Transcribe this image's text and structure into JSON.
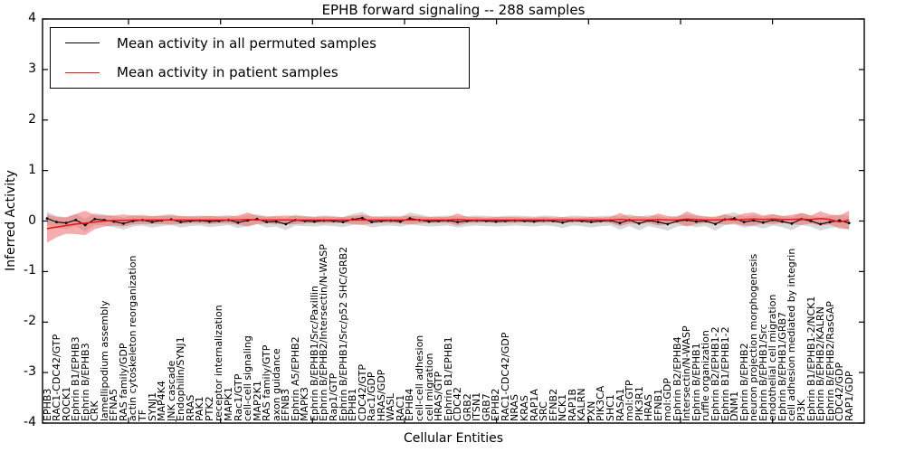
{
  "chart_data": {
    "type": "line",
    "title": "EPHB forward signaling -- 288 samples",
    "xlabel": "Cellular Entities",
    "ylabel": "Inferred Activity",
    "ylim": [
      -4,
      4
    ],
    "yticks": [
      4,
      3,
      2,
      1,
      0,
      -1,
      -2,
      -3,
      -4
    ],
    "grid": false,
    "legend_position": "upper left",
    "colors": {
      "permuted_line": "#000000",
      "permuted_band": "#b8b8b8",
      "patient_line": "#f21111",
      "patient_band": "#ee6a6a"
    },
    "categories": [
      "EPHB3",
      "RAC1-CDC42/GTP",
      "ROCK1",
      "Ephrin B1/EPHB3",
      "Ephrin B/EPHB3",
      "CRK",
      "lamellipodium assembly",
      "EFNA5",
      "RAS family/GDP",
      "actin cytoskeleton reorganization",
      "TF",
      "SYNJ1",
      "MAP4K4",
      "JNK cascade",
      "Endophilin/SYNJ1",
      "RRAS",
      "PAK1",
      "PTK2",
      "receptor internalization",
      "MAPK1",
      "Rac1/GTP",
      "cell-cell signaling",
      "MAP2K1",
      "RAS family/GTP",
      "axon guidance",
      "EFNB3",
      "Ephrin A5/EPHB2",
      "MAPK3",
      "Ephrin B/EPHB1/Src/Paxillin",
      "Ephrin B/EPHB2/Intersectin/N-WASP",
      "Rap1/GTP",
      "Ephrin B/EPHB1/Src/p52 SHC/GRB2",
      "EPHB1",
      "CDC42/GTP",
      "Rac1/GDP",
      "HRAS/GDP",
      "WASL",
      "RAC1",
      "EPHB4",
      "cell-cell adhesion",
      "cell migration",
      "HRAS/GTP",
      "Ephrin B1/EPHB1",
      "CDC42",
      "GRB2",
      "ITSN1",
      "GRB7",
      "EPHB2",
      "RAC1-CDC42/GDP",
      "NRAS",
      "KRAS",
      "RAP1A",
      "SRC",
      "EFNB2",
      "NCK1",
      "RAP1B",
      "KALRN",
      "PXN",
      "PIK3CA",
      "SHC1",
      "RASA1",
      "mol:GTP",
      "PIK3R1",
      "HRAS",
      "EFNB1",
      "mol:GDP",
      "Ephrin B2/EPHB4",
      "Intersectin/N-WASP",
      "Ephrin B/EPHB1",
      "ruffle organization",
      "Ephrin B2/EPHB1-2",
      "Ephrin B1/EPHB1-2",
      "DNM1",
      "Ephrin B/EPHB2",
      "neuron projection morphogenesis",
      "Ephrin B/EPHB1/Src",
      "endothelial cell migration",
      "Ephrin B/EPHB1/GRB7",
      "cell adhesion mediated by integrin",
      "PI3K",
      "Ephrin B1/EPHB1-2/NCK1",
      "Ephrin B/EPHB2/KALRN",
      "Ephrin B/EPHB2/RasGAP",
      "CDC42/GDP",
      "RAP1/GDP"
    ],
    "series": [
      {
        "name": "Mean activity in all permuted samples",
        "values": [
          0.05,
          -0.02,
          -0.04,
          0.02,
          -0.08,
          0.04,
          0.02,
          -0.01,
          -0.05,
          0.0,
          0.02,
          -0.02,
          0.01,
          0.03,
          -0.02,
          0.0,
          0.01,
          -0.01,
          0.0,
          0.02,
          -0.03,
          0.01,
          0.04,
          -0.02,
          -0.01,
          -0.06,
          0.02,
          0.0,
          -0.01,
          0.01,
          0.0,
          -0.02,
          0.03,
          0.06,
          -0.02,
          0.0,
          0.01,
          -0.01,
          0.05,
          0.02,
          -0.01,
          0.0,
          0.01,
          -0.02,
          0.0,
          0.01,
          0.0,
          -0.01,
          0.0,
          0.01,
          0.0,
          -0.01,
          0.01,
          0.0,
          -0.03,
          0.01,
          0.0,
          -0.02,
          0.0,
          0.01,
          -0.04,
          0.02,
          -0.05,
          0.01,
          -0.02,
          -0.06,
          0.0,
          0.02,
          -0.01,
          0.0,
          -0.06,
          0.03,
          0.05,
          -0.02,
          0.01,
          -0.03,
          0.02,
          -0.01,
          -0.05,
          0.04,
          0.0,
          -0.06,
          -0.02,
          0.01,
          -0.04
        ],
        "band_halfwidth": [
          0.13,
          0.12,
          0.12,
          0.12,
          0.13,
          0.12,
          0.11,
          0.11,
          0.12,
          0.11,
          0.11,
          0.11,
          0.11,
          0.11,
          0.11,
          0.1,
          0.1,
          0.11,
          0.1,
          0.1,
          0.11,
          0.11,
          0.1,
          0.11,
          0.1,
          0.12,
          0.11,
          0.1,
          0.1,
          0.1,
          0.1,
          0.1,
          0.11,
          0.12,
          0.11,
          0.1,
          0.1,
          0.1,
          0.12,
          0.11,
          0.1,
          0.1,
          0.1,
          0.11,
          0.1,
          0.1,
          0.1,
          0.1,
          0.1,
          0.1,
          0.1,
          0.1,
          0.1,
          0.1,
          0.11,
          0.1,
          0.1,
          0.11,
          0.1,
          0.1,
          0.13,
          0.12,
          0.13,
          0.11,
          0.12,
          0.13,
          0.11,
          0.11,
          0.11,
          0.1,
          0.13,
          0.11,
          0.12,
          0.11,
          0.11,
          0.12,
          0.11,
          0.11,
          0.13,
          0.12,
          0.11,
          0.13,
          0.12,
          0.12,
          0.14
        ]
      },
      {
        "name": "Mean activity in patient samples",
        "values": [
          -0.15,
          -0.12,
          -0.09,
          -0.06,
          -0.04,
          -0.02,
          0.0,
          0.01,
          0.01,
          0.02,
          0.02,
          0.02,
          0.02,
          0.02,
          0.02,
          0.02,
          0.02,
          0.02,
          0.02,
          0.02,
          0.02,
          0.03,
          0.02,
          0.02,
          0.02,
          0.02,
          0.02,
          0.02,
          0.02,
          0.02,
          0.02,
          0.02,
          0.02,
          0.02,
          0.02,
          0.02,
          0.02,
          0.02,
          0.02,
          0.02,
          0.02,
          0.02,
          0.02,
          0.03,
          0.02,
          0.02,
          0.02,
          0.02,
          0.02,
          0.02,
          0.02,
          0.02,
          0.02,
          0.02,
          0.02,
          0.02,
          0.02,
          0.02,
          0.02,
          0.02,
          0.03,
          0.02,
          0.02,
          0.02,
          0.03,
          0.02,
          0.02,
          0.04,
          0.03,
          0.02,
          0.02,
          0.03,
          0.02,
          0.03,
          0.04,
          0.03,
          0.04,
          0.03,
          0.03,
          0.04,
          0.03,
          0.05,
          0.03,
          -0.02,
          0.02
        ],
        "band_halfwidth": [
          0.28,
          0.2,
          0.16,
          0.2,
          0.24,
          0.14,
          0.11,
          0.1,
          0.12,
          0.09,
          0.08,
          0.08,
          0.08,
          0.09,
          0.08,
          0.07,
          0.07,
          0.08,
          0.07,
          0.07,
          0.09,
          0.14,
          0.08,
          0.07,
          0.08,
          0.09,
          0.08,
          0.07,
          0.06,
          0.07,
          0.06,
          0.06,
          0.08,
          0.1,
          0.07,
          0.06,
          0.06,
          0.07,
          0.09,
          0.07,
          0.06,
          0.06,
          0.06,
          0.12,
          0.06,
          0.06,
          0.05,
          0.06,
          0.06,
          0.06,
          0.05,
          0.05,
          0.06,
          0.05,
          0.06,
          0.05,
          0.05,
          0.06,
          0.05,
          0.06,
          0.13,
          0.07,
          0.08,
          0.06,
          0.12,
          0.08,
          0.06,
          0.15,
          0.09,
          0.06,
          0.07,
          0.1,
          0.07,
          0.12,
          0.13,
          0.08,
          0.1,
          0.07,
          0.09,
          0.12,
          0.08,
          0.14,
          0.1,
          0.13,
          0.18
        ]
      }
    ]
  }
}
